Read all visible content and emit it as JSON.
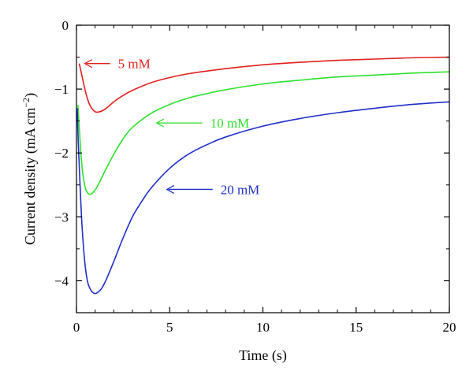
{
  "chart_data": {
    "type": "line",
    "title": "",
    "xlabel": "Time (s)",
    "ylabel": "Current density (mA cm",
    "ylabel_unit_exponent": "−2",
    "ylabel_close": ")",
    "xlim": [
      0,
      20
    ],
    "ylim": [
      -4.5,
      0
    ],
    "x_ticks": [
      0,
      5,
      10,
      15,
      20
    ],
    "x_tick_labels": [
      "0",
      "5",
      "10",
      "15",
      "20"
    ],
    "x_minor_ticks": [
      1,
      2,
      3,
      4,
      6,
      7,
      8,
      9,
      11,
      12,
      13,
      14,
      16,
      17,
      18,
      19
    ],
    "y_ticks": [
      0,
      -1,
      -2,
      -3,
      -4
    ],
    "y_tick_labels": [
      "0",
      "−1",
      "−2",
      "−3",
      "−4"
    ],
    "y_minor_ticks": [
      -0.5,
      -1.5,
      -2.5,
      -3.5
    ],
    "grid": false,
    "legend": "none",
    "series": [
      {
        "name": "5 mM",
        "color": "#e0201e",
        "x": [
          0.15,
          0.3,
          0.5,
          0.7,
          0.9,
          1.05,
          1.3,
          1.6,
          2.0,
          2.5,
          3,
          4,
          5,
          6,
          8,
          10,
          12,
          14,
          16,
          18,
          20
        ],
        "y": [
          -0.6,
          -0.8,
          -1.06,
          -1.24,
          -1.33,
          -1.36,
          -1.35,
          -1.3,
          -1.2,
          -1.1,
          -1.02,
          -0.9,
          -0.82,
          -0.76,
          -0.68,
          -0.62,
          -0.58,
          -0.55,
          -0.53,
          -0.51,
          -0.5
        ],
        "annotation": {
          "label": "5 mM",
          "x": 0.45,
          "y": -0.6
        }
      },
      {
        "name": "10 mM",
        "color": "#2ee02e",
        "x": [
          0.08,
          0.15,
          0.25,
          0.35,
          0.5,
          0.65,
          0.8,
          1.0,
          1.2,
          1.5,
          2.0,
          2.5,
          3,
          4,
          5,
          6,
          7,
          8,
          10,
          12,
          14,
          16,
          18,
          20
        ],
        "y": [
          -1.25,
          -1.6,
          -2.05,
          -2.35,
          -2.57,
          -2.64,
          -2.64,
          -2.58,
          -2.48,
          -2.3,
          -2.02,
          -1.78,
          -1.6,
          -1.38,
          -1.24,
          -1.14,
          -1.07,
          -1.01,
          -0.92,
          -0.86,
          -0.81,
          -0.78,
          -0.75,
          -0.73
        ],
        "annotation": {
          "label": "10 mM",
          "x": 4.3,
          "y": -1.53
        }
      },
      {
        "name": "20 mM",
        "color": "#1f2fc8",
        "x": [
          0.04,
          0.1,
          0.2,
          0.3,
          0.45,
          0.6,
          0.8,
          1.0,
          1.15,
          1.35,
          1.6,
          2.0,
          2.5,
          3.0,
          3.5,
          4,
          5,
          6,
          7,
          8,
          10,
          12,
          14,
          16,
          18,
          20
        ],
        "y": [
          -1.3,
          -1.85,
          -2.55,
          -3.15,
          -3.72,
          -4.02,
          -4.16,
          -4.2,
          -4.18,
          -4.12,
          -3.98,
          -3.7,
          -3.33,
          -3.0,
          -2.76,
          -2.55,
          -2.24,
          -2.02,
          -1.87,
          -1.75,
          -1.58,
          -1.46,
          -1.37,
          -1.3,
          -1.24,
          -1.2
        ],
        "annotation": {
          "label": "20 mM",
          "x": 4.85,
          "y": -2.57
        }
      }
    ]
  }
}
